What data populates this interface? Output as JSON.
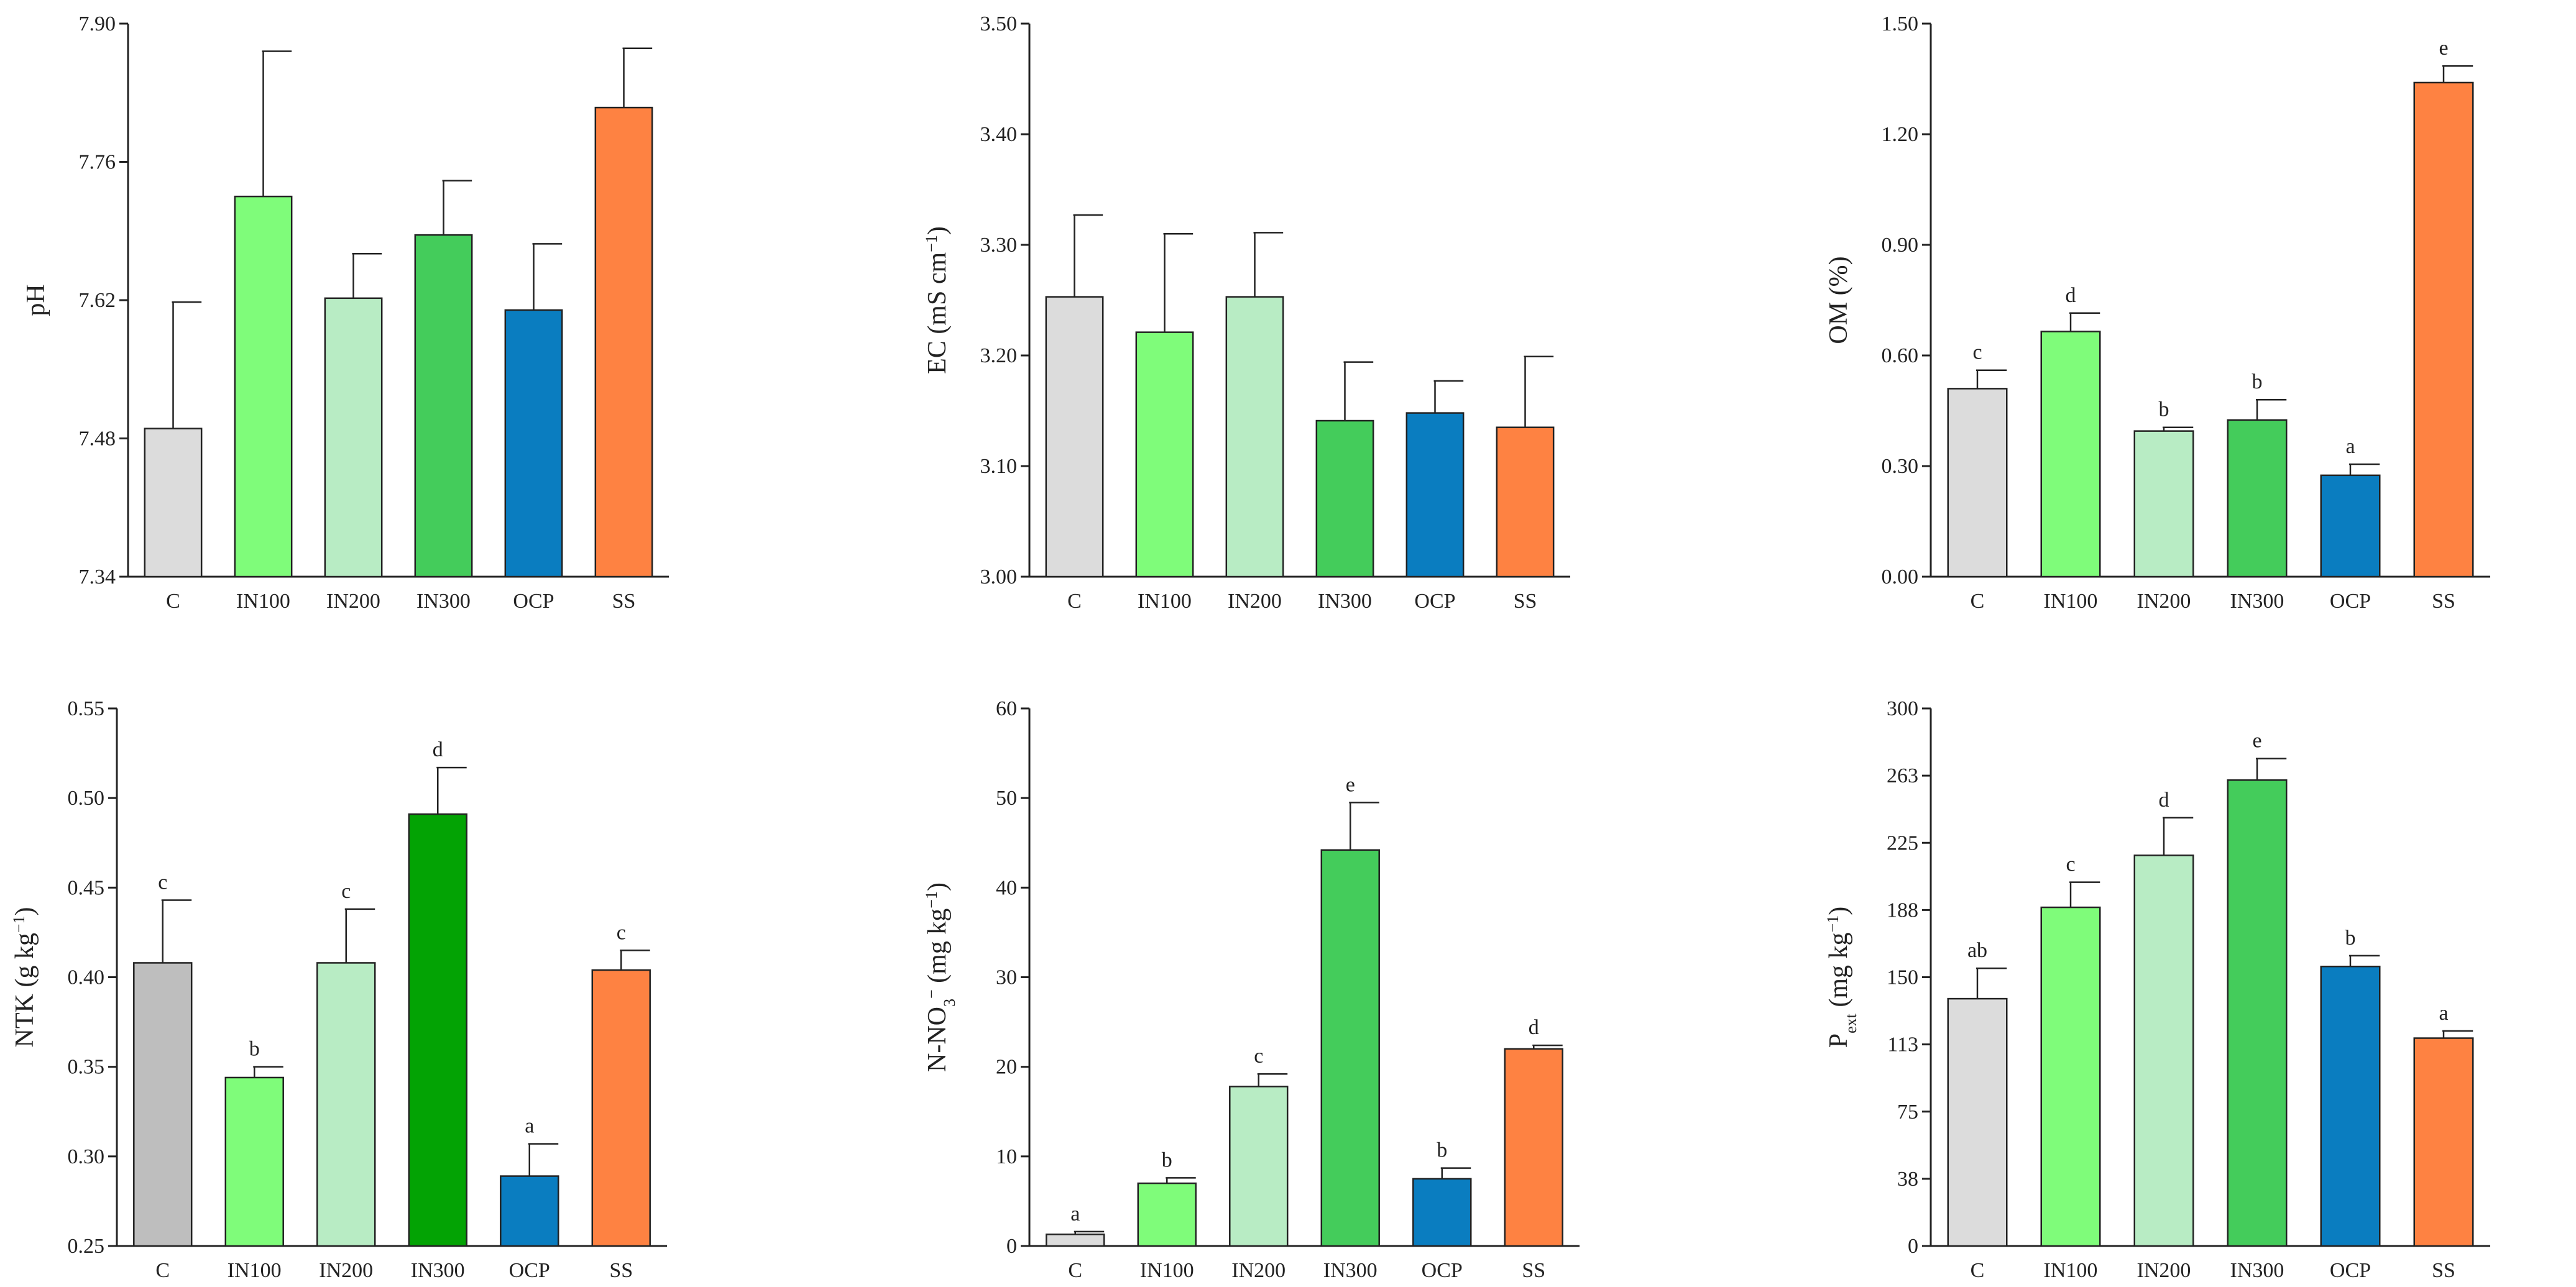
{
  "colors": {
    "light_grey": "#dcdcdc",
    "mid_grey": "#bebebe",
    "light_green": "#7ffc7a",
    "pale_green": "#b8ecc4",
    "green": "#44cc5b",
    "dark_green": "#03a304",
    "blue": "#0a7dc0",
    "orange": "#fe8242"
  },
  "chart_data": [
    {
      "id": "ph",
      "type": "bar",
      "ylabel": "pH",
      "ylim": [
        7.34,
        7.9
      ],
      "yticks": [
        7.34,
        7.48,
        7.62,
        7.76,
        7.9
      ],
      "yticklabels": [
        "7.34",
        "7.48",
        "7.62",
        "7.76",
        "7.90"
      ],
      "categories": [
        "C",
        "IN100",
        "IN200",
        "IN300",
        "OCP",
        "SS"
      ],
      "values": [
        7.49,
        7.725,
        7.622,
        7.686,
        7.61,
        7.815
      ],
      "errors": [
        0.128,
        0.147,
        0.045,
        0.055,
        0.067,
        0.06
      ],
      "colors": [
        "#dcdcdc",
        "#7ffc7a",
        "#b8ecc4",
        "#44cc5b",
        "#0a7dc0",
        "#fe8242"
      ],
      "significance": []
    },
    {
      "id": "ec",
      "type": "bar",
      "ylabel_parts": [
        {
          "text": "EC (mS cm"
        },
        {
          "text": "−1",
          "sup": true
        },
        {
          "text": ")"
        }
      ],
      "ylim": [
        3.0,
        3.5
      ],
      "yticks": [
        3.0,
        3.1,
        3.2,
        3.3,
        3.4,
        3.5
      ],
      "yticklabels": [
        "3.00",
        "3.10",
        "3.20",
        "3.30",
        "3.40",
        "3.50"
      ],
      "categories": [
        "C",
        "IN100",
        "IN200",
        "IN300",
        "OCP",
        "SS"
      ],
      "values": [
        3.253,
        3.221,
        3.253,
        3.141,
        3.148,
        3.135
      ],
      "errors": [
        0.074,
        0.089,
        0.058,
        0.053,
        0.029,
        0.064
      ],
      "colors": [
        "#dcdcdc",
        "#7ffc7a",
        "#b8ecc4",
        "#44cc5b",
        "#0a7dc0",
        "#fe8242"
      ],
      "significance": []
    },
    {
      "id": "om",
      "type": "bar",
      "ylabel": "OM (%)",
      "ylim": [
        0.0,
        1.5
      ],
      "yticks": [
        0.0,
        0.3,
        0.6,
        0.9,
        1.2,
        1.5
      ],
      "yticklabels": [
        "0.00",
        "0.30",
        "0.60",
        "0.90",
        "1.20",
        "1.50"
      ],
      "categories": [
        "C",
        "IN100",
        "IN200",
        "IN300",
        "OCP",
        "SS"
      ],
      "values": [
        0.51,
        0.665,
        0.395,
        0.425,
        0.275,
        1.34
      ],
      "errors": [
        0.05,
        0.05,
        0.01,
        0.055,
        0.03,
        0.045
      ],
      "colors": [
        "#dcdcdc",
        "#7ffc7a",
        "#b8ecc4",
        "#44cc5b",
        "#0a7dc0",
        "#fe8242"
      ],
      "significance": [
        "c",
        "d",
        "b",
        "b",
        "a",
        "e"
      ]
    },
    {
      "id": "ntk",
      "type": "bar",
      "ylabel_parts": [
        {
          "text": "NTK (g kg"
        },
        {
          "text": "−1",
          "sup": true
        },
        {
          "text": ")"
        }
      ],
      "ylim": [
        0.25,
        0.55
      ],
      "yticks": [
        0.25,
        0.3,
        0.35,
        0.4,
        0.45,
        0.5,
        0.55
      ],
      "yticklabels": [
        "0.25",
        "0.30",
        "0.35",
        "0.40",
        "0.45",
        "0.50",
        "0.55"
      ],
      "categories": [
        "C",
        "IN100",
        "IN200",
        "IN300",
        "OCP",
        "SS"
      ],
      "values": [
        0.408,
        0.344,
        0.408,
        0.491,
        0.289,
        0.404
      ],
      "errors": [
        0.035,
        0.006,
        0.03,
        0.026,
        0.018,
        0.011
      ],
      "colors": [
        "#bebebe",
        "#7ffc7a",
        "#b8ecc4",
        "#03a304",
        "#0a7dc0",
        "#fe8242"
      ],
      "significance": [
        "c",
        "b",
        "c",
        "d",
        "a",
        "c"
      ]
    },
    {
      "id": "nno3",
      "type": "bar",
      "ylabel_parts": [
        {
          "text": "N-NO"
        },
        {
          "text": "3",
          "sub": true
        },
        {
          "text": "−",
          "sup": true
        },
        {
          "text": " (mg kg"
        },
        {
          "text": "−1",
          "sup": true
        },
        {
          "text": ")"
        }
      ],
      "ylim": [
        0,
        60
      ],
      "yticks": [
        0,
        10,
        20,
        30,
        40,
        50,
        60
      ],
      "yticklabels": [
        "0",
        "10",
        "20",
        "30",
        "40",
        "50",
        "60"
      ],
      "categories": [
        "C",
        "IN100",
        "IN200",
        "IN300",
        "OCP",
        "SS"
      ],
      "values": [
        1.3,
        7.0,
        17.8,
        44.2,
        7.5,
        22.0
      ],
      "errors": [
        0.3,
        0.6,
        1.4,
        5.3,
        1.2,
        0.4
      ],
      "colors": [
        "#dcdcdc",
        "#7ffc7a",
        "#b8ecc4",
        "#44cc5b",
        "#0a7dc0",
        "#fe8242"
      ],
      "significance": [
        "a",
        "b",
        "c",
        "e",
        "b",
        "d"
      ]
    },
    {
      "id": "pext",
      "type": "bar",
      "ylabel_parts": [
        {
          "text": "P"
        },
        {
          "text": "ext",
          "sub": true
        },
        {
          "text": " (mg kg"
        },
        {
          "text": "−1",
          "sup": true
        },
        {
          "text": ")"
        }
      ],
      "ylim": [
        0,
        300
      ],
      "yticks": [
        0,
        37.5,
        75,
        112.5,
        150,
        187.5,
        225,
        262.5,
        300
      ],
      "yticklabels": [
        "0",
        "38",
        "75",
        "113",
        "150",
        "188",
        "225",
        "263",
        "300"
      ],
      "categories": [
        "C",
        "IN100",
        "IN200",
        "IN300",
        "OCP",
        "SS"
      ],
      "values": [
        138,
        189,
        218,
        260,
        156,
        116
      ],
      "errors": [
        17,
        14,
        21,
        12,
        6,
        4
      ],
      "colors": [
        "#dcdcdc",
        "#7ffc7a",
        "#b8ecc4",
        "#44cc5b",
        "#0a7dc0",
        "#fe8242"
      ],
      "significance": [
        "ab",
        "c",
        "d",
        "e",
        "b",
        "a"
      ]
    }
  ]
}
